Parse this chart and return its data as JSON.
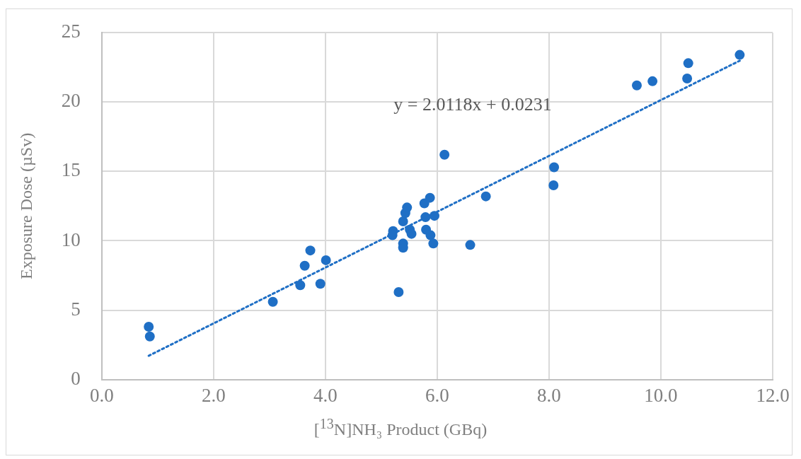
{
  "chart_data": {
    "type": "scatter",
    "xlabel": "[$^{13}$N]NH₃  Product (GBq)",
    "ylabel": "Exposure Dose (µSv)",
    "annotations": [
      "y = 2.0118x + 0.0231"
    ],
    "xlim": [
      0,
      12
    ],
    "xticks": [
      {
        "value": 0,
        "label": "0.0"
      },
      {
        "value": 2,
        "label": "2.0"
      },
      {
        "value": 4,
        "label": "4.0"
      },
      {
        "value": 6,
        "label": "6.0"
      },
      {
        "value": 8,
        "label": "8.0"
      },
      {
        "value": 10,
        "label": "10.0"
      },
      {
        "value": 12,
        "label": "12.0"
      }
    ],
    "ylim": [
      0,
      25
    ],
    "yticks": [
      0,
      5,
      10,
      15,
      20,
      25
    ],
    "grid": true,
    "marker": "circle",
    "series": [
      {
        "color": "#1f6fc5",
        "x": [
          0.84,
          0.86,
          3.06,
          3.73,
          3.63,
          4.01,
          3.55,
          3.91,
          5.31,
          5.21,
          5.2,
          5.39,
          5.39,
          5.39,
          5.43,
          5.46,
          5.51,
          5.54,
          5.77,
          5.87,
          5.79,
          5.95,
          5.8,
          5.88,
          5.93,
          6.59,
          6.87,
          6.13,
          8.09,
          8.08,
          9.57,
          9.85,
          10.49,
          10.47,
          11.41
        ],
        "values": [
          3.8,
          3.1,
          5.6,
          9.3,
          8.2,
          8.6,
          6.8,
          6.9,
          6.3,
          10.7,
          10.4,
          9.8,
          9.5,
          11.4,
          12.0,
          12.4,
          10.8,
          10.5,
          12.7,
          13.1,
          11.7,
          11.8,
          10.8,
          10.4,
          9.8,
          9.7,
          13.2,
          16.2,
          15.3,
          14.0,
          21.2,
          21.5,
          22.8,
          21.7,
          23.4
        ]
      },
      {
        "type": "line",
        "color": "#1f6fc5",
        "line_style": "dotted",
        "marker": "none",
        "x": [
          0.84,
          11.41
        ],
        "values": [
          1.71,
          22.98
        ]
      }
    ]
  }
}
